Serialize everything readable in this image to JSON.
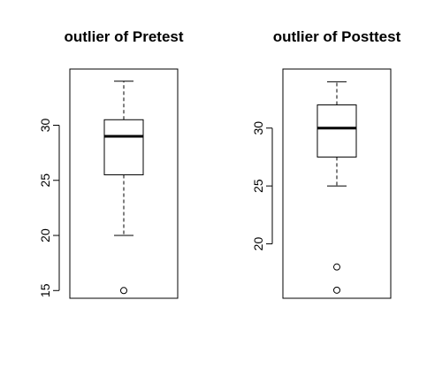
{
  "chart_data": [
    {
      "type": "boxplot",
      "title": "outlier of Pretest",
      "xlabel": "",
      "ylabel": "",
      "ylim": [
        14.3,
        35.1
      ],
      "yticks": [
        15,
        20,
        25,
        30
      ],
      "ytick_labels": [
        "15",
        "20",
        "25",
        "30"
      ],
      "stats": {
        "min": 20,
        "q1": 25.5,
        "median": 29,
        "q3": 30.5,
        "max": 34
      },
      "outliers": [
        15
      ],
      "grid": false
    },
    {
      "type": "boxplot",
      "title": "outlier of Posttest",
      "xlabel": "",
      "ylabel": "",
      "ylim": [
        15.3,
        35.1
      ],
      "yticks": [
        20,
        25,
        30
      ],
      "ytick_labels": [
        "20",
        "25",
        "30"
      ],
      "stats": {
        "min": 25,
        "q1": 27.5,
        "median": 30,
        "q3": 32,
        "max": 34
      },
      "outliers": [
        18,
        16
      ],
      "grid": false
    }
  ]
}
